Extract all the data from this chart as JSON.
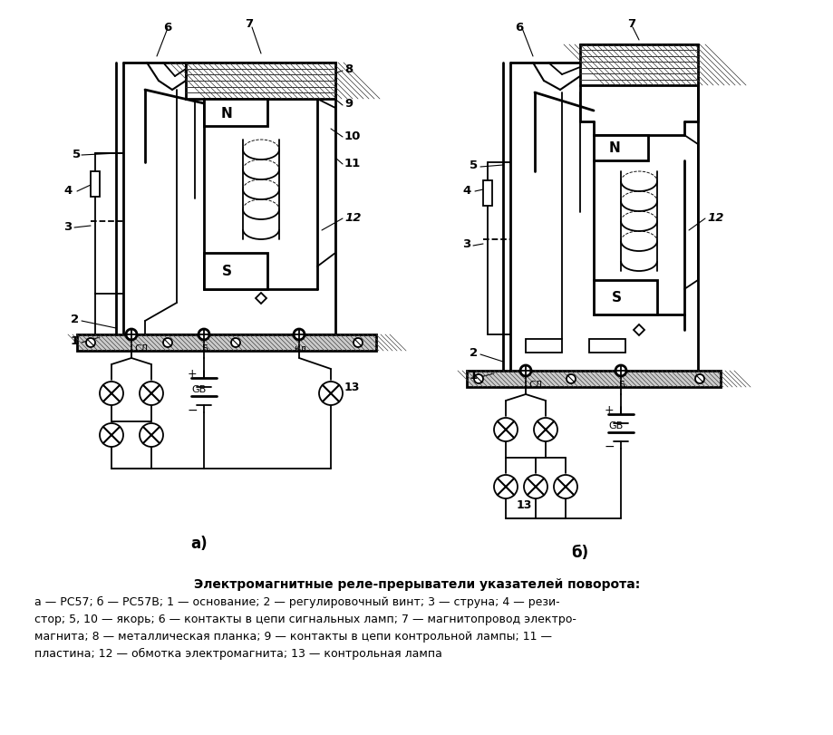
{
  "bg_color": "#ffffff",
  "fig_width": 9.2,
  "fig_height": 8.12,
  "dpi": 100,
  "title_bold": "Электромагнитные реле-прерыватели указателей поворота:",
  "caption_lines": [
    "а — РС57; б — РС57В; 1 — основание; 2 — регулировочный винт; 3 — струна; 4 — рези-",
    "стор; 5, 10 — якорь; 6 — контакты в цепи сигнальных ламп; 7 — магнитопровод электро-",
    "магнита; 8 — металлическая планка; 9 — контакты в цепи контрольной лампы; 11 —",
    "пластина; 12 — обмотка электромагнита; 13 — контрольная лампа"
  ],
  "label_a": "а)",
  "label_b": "б)"
}
